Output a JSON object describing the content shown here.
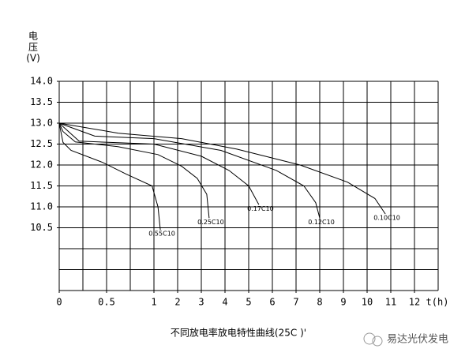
{
  "chart_data": {
    "type": "line",
    "caption": "不同放电率放电特性曲线(25C )'",
    "ylabel_lines": [
      "电",
      "压",
      "(V)"
    ],
    "xlabel": "t(h)",
    "watermark": "易达光伏发电",
    "ylim": [
      9.0,
      14.0
    ],
    "yticks": [
      {
        "value": 14,
        "label": "14.0"
      },
      13.5,
      {
        "value": 13,
        "label": "13.0"
      },
      12.5,
      {
        "value": 12,
        "label": "12.0"
      },
      11.5,
      {
        "value": 11,
        "label": "11.0"
      },
      10.5
    ],
    "xlim": [
      0,
      13
    ],
    "xticks": [
      0,
      0.5,
      1,
      2,
      3,
      4,
      5,
      6,
      7,
      8,
      9,
      10,
      11,
      12
    ],
    "grid": true,
    "color": "#000000",
    "series": [
      {
        "name": "0.55C10",
        "x": [
          0,
          0.04,
          0.125,
          0.46,
          0.71,
          0.98,
          1.17,
          1.27
        ],
        "values": [
          13.0,
          12.54,
          12.35,
          12.06,
          11.78,
          11.5,
          11.0,
          10.45
        ]
      },
      {
        "name": "0.25C10",
        "x": [
          0,
          0.04,
          0.17,
          0.62,
          1.17,
          2.17,
          2.83,
          3.23,
          3.33
        ],
        "values": [
          13.0,
          12.8,
          12.55,
          12.44,
          12.25,
          11.97,
          11.68,
          11.3,
          10.73
        ]
      },
      {
        "name": "0.17C10",
        "x": [
          0,
          0.21,
          1,
          3,
          4.17,
          5,
          5.43
        ],
        "values": [
          13.0,
          12.57,
          12.5,
          12.21,
          11.87,
          11.5,
          11.05
        ]
      },
      {
        "name": "0.12C10",
        "x": [
          0,
          0.375,
          1,
          3.83,
          6.17,
          7.33,
          7.83,
          8
        ],
        "values": [
          13.0,
          12.69,
          12.63,
          12.35,
          11.87,
          11.5,
          11.1,
          10.73
        ]
      },
      {
        "name": "0.10C10",
        "x": [
          0,
          0.625,
          2.17,
          4.5,
          7.17,
          9.17,
          10.33,
          10.77
        ],
        "values": [
          13.0,
          12.76,
          12.63,
          12.38,
          12.0,
          11.59,
          11.2,
          10.83
        ]
      }
    ]
  }
}
